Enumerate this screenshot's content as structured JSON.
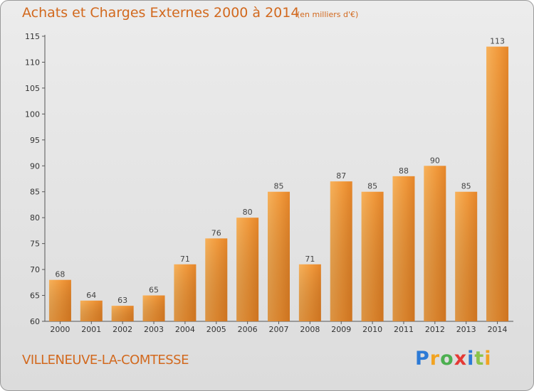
{
  "chart_data": {
    "type": "bar",
    "title": "Achats et Charges Externes 2000 à 2014",
    "subtitle": "(en milliers d'€)",
    "categories": [
      "2000",
      "2001",
      "2002",
      "2003",
      "2004",
      "2005",
      "2006",
      "2007",
      "2008",
      "2009",
      "2010",
      "2011",
      "2012",
      "2013",
      "2014"
    ],
    "values": [
      68,
      64,
      63,
      65,
      71,
      76,
      80,
      85,
      71,
      87,
      85,
      88,
      90,
      85,
      113
    ],
    "ylim": [
      60,
      115
    ],
    "yticks": [
      60,
      65,
      70,
      75,
      80,
      85,
      90,
      95,
      100,
      105,
      110,
      115
    ],
    "grid": false,
    "bar_color": "#f29a3c"
  },
  "footer": {
    "place_name": "VILLENEUVE-LA-COMTESSE"
  },
  "logo": {
    "letters": [
      "P",
      "r",
      "o",
      "x",
      "i",
      "t",
      "i"
    ]
  }
}
